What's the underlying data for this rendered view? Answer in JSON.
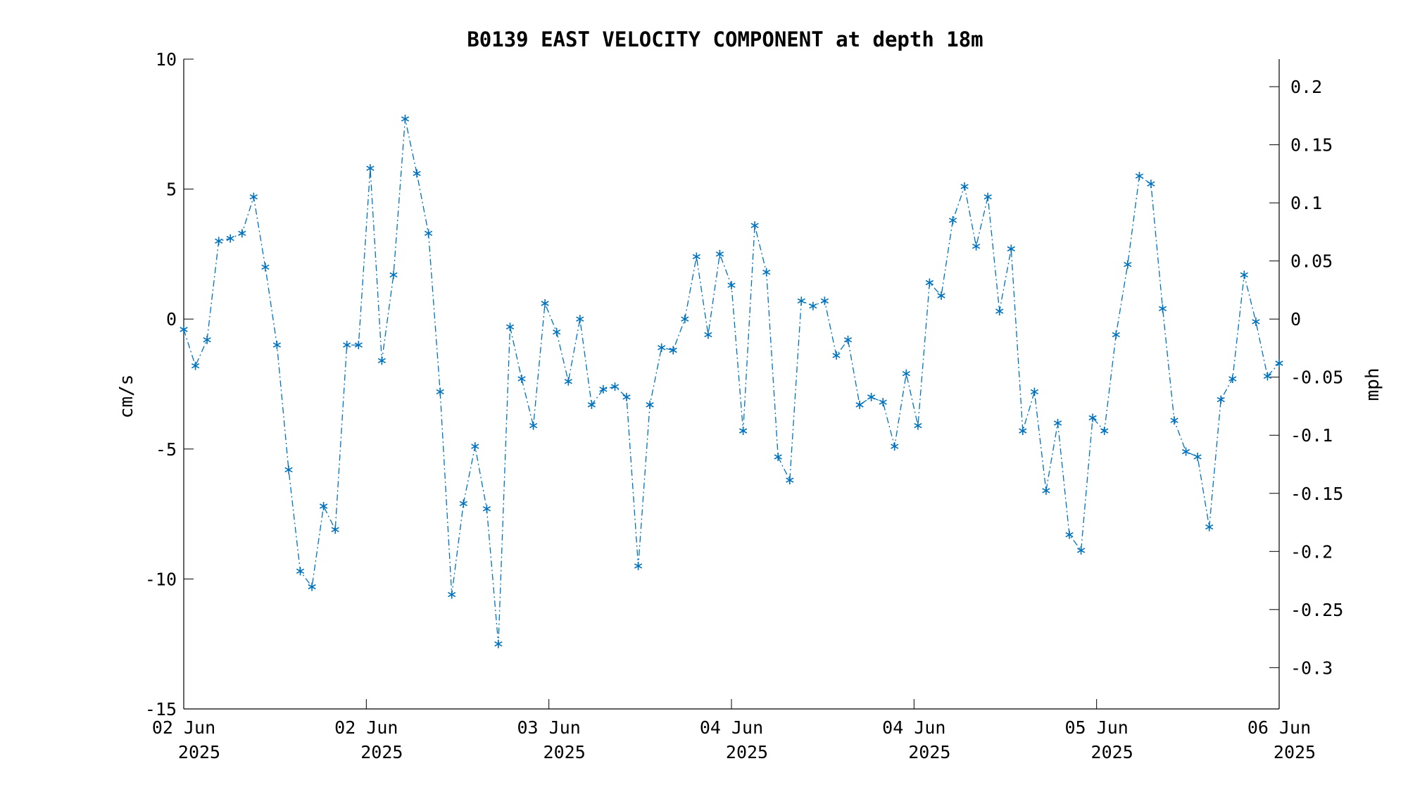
{
  "chart_data": {
    "type": "line",
    "title": "B0139 EAST VELOCITY COMPONENT at depth 18m",
    "ylabel": "cm/s",
    "y2label": "mph",
    "ylim": [
      -15,
      10
    ],
    "y2lim": [
      -0.335541,
      0.223694
    ],
    "yticks": [
      "10",
      "5",
      "0",
      "-5",
      "-10",
      "-15"
    ],
    "y2ticks": [
      "0.2",
      "0.15",
      "0.1",
      "0.05",
      "0",
      "-0.05",
      "-0.1",
      "-0.15",
      "-0.2",
      "-0.25",
      "-0.3"
    ],
    "xticks": [
      {
        "day": "02 Jun",
        "year": "2025"
      },
      {
        "day": "02 Jun",
        "year": "2025"
      },
      {
        "day": "03 Jun",
        "year": "2025"
      },
      {
        "day": "04 Jun",
        "year": "2025"
      },
      {
        "day": "04 Jun",
        "year": "2025"
      },
      {
        "day": "05 Jun",
        "year": "2025"
      },
      {
        "day": "06 Jun",
        "year": "2025"
      }
    ],
    "marker": "asterisk",
    "line_style": "dash-dot",
    "series_color": "#0072BD",
    "grid": false,
    "series": [
      {
        "values": [
          -0.4,
          -1.8,
          -0.8,
          3.0,
          3.1,
          3.3,
          4.7,
          2.0,
          -1.0,
          -5.8,
          -9.7,
          -10.3,
          -7.2,
          -8.1,
          -1.0,
          -1.0,
          5.8,
          -1.6,
          1.7,
          7.7,
          5.6,
          3.3,
          -2.8,
          -10.6,
          -7.1,
          -4.9,
          -7.3,
          -12.5,
          -0.3,
          -2.3,
          -4.1,
          0.6,
          -0.5,
          -2.4,
          0.0,
          -3.3,
          -2.7,
          -2.6,
          -3.0,
          -9.5,
          -3.3,
          -1.1,
          -1.2,
          0.0,
          2.4,
          -0.6,
          2.5,
          1.3,
          -4.3,
          3.6,
          1.8,
          -5.3,
          -6.2,
          0.7,
          0.5,
          0.7,
          -1.4,
          -0.8,
          -3.3,
          -3.0,
          -3.2,
          -4.9,
          -2.1,
          -4.1,
          1.4,
          0.9,
          3.8,
          5.1,
          2.8,
          4.7,
          0.3,
          2.7,
          -4.3,
          -2.8,
          -6.6,
          -4.0,
          -8.3,
          -8.9,
          -3.8,
          -4.3,
          -0.6,
          2.1,
          5.5,
          5.2,
          0.4,
          -3.9,
          -5.1,
          -5.3,
          -8.0,
          -3.1,
          -2.3,
          1.7,
          -0.1,
          -2.2,
          -1.7
        ]
      }
    ]
  }
}
